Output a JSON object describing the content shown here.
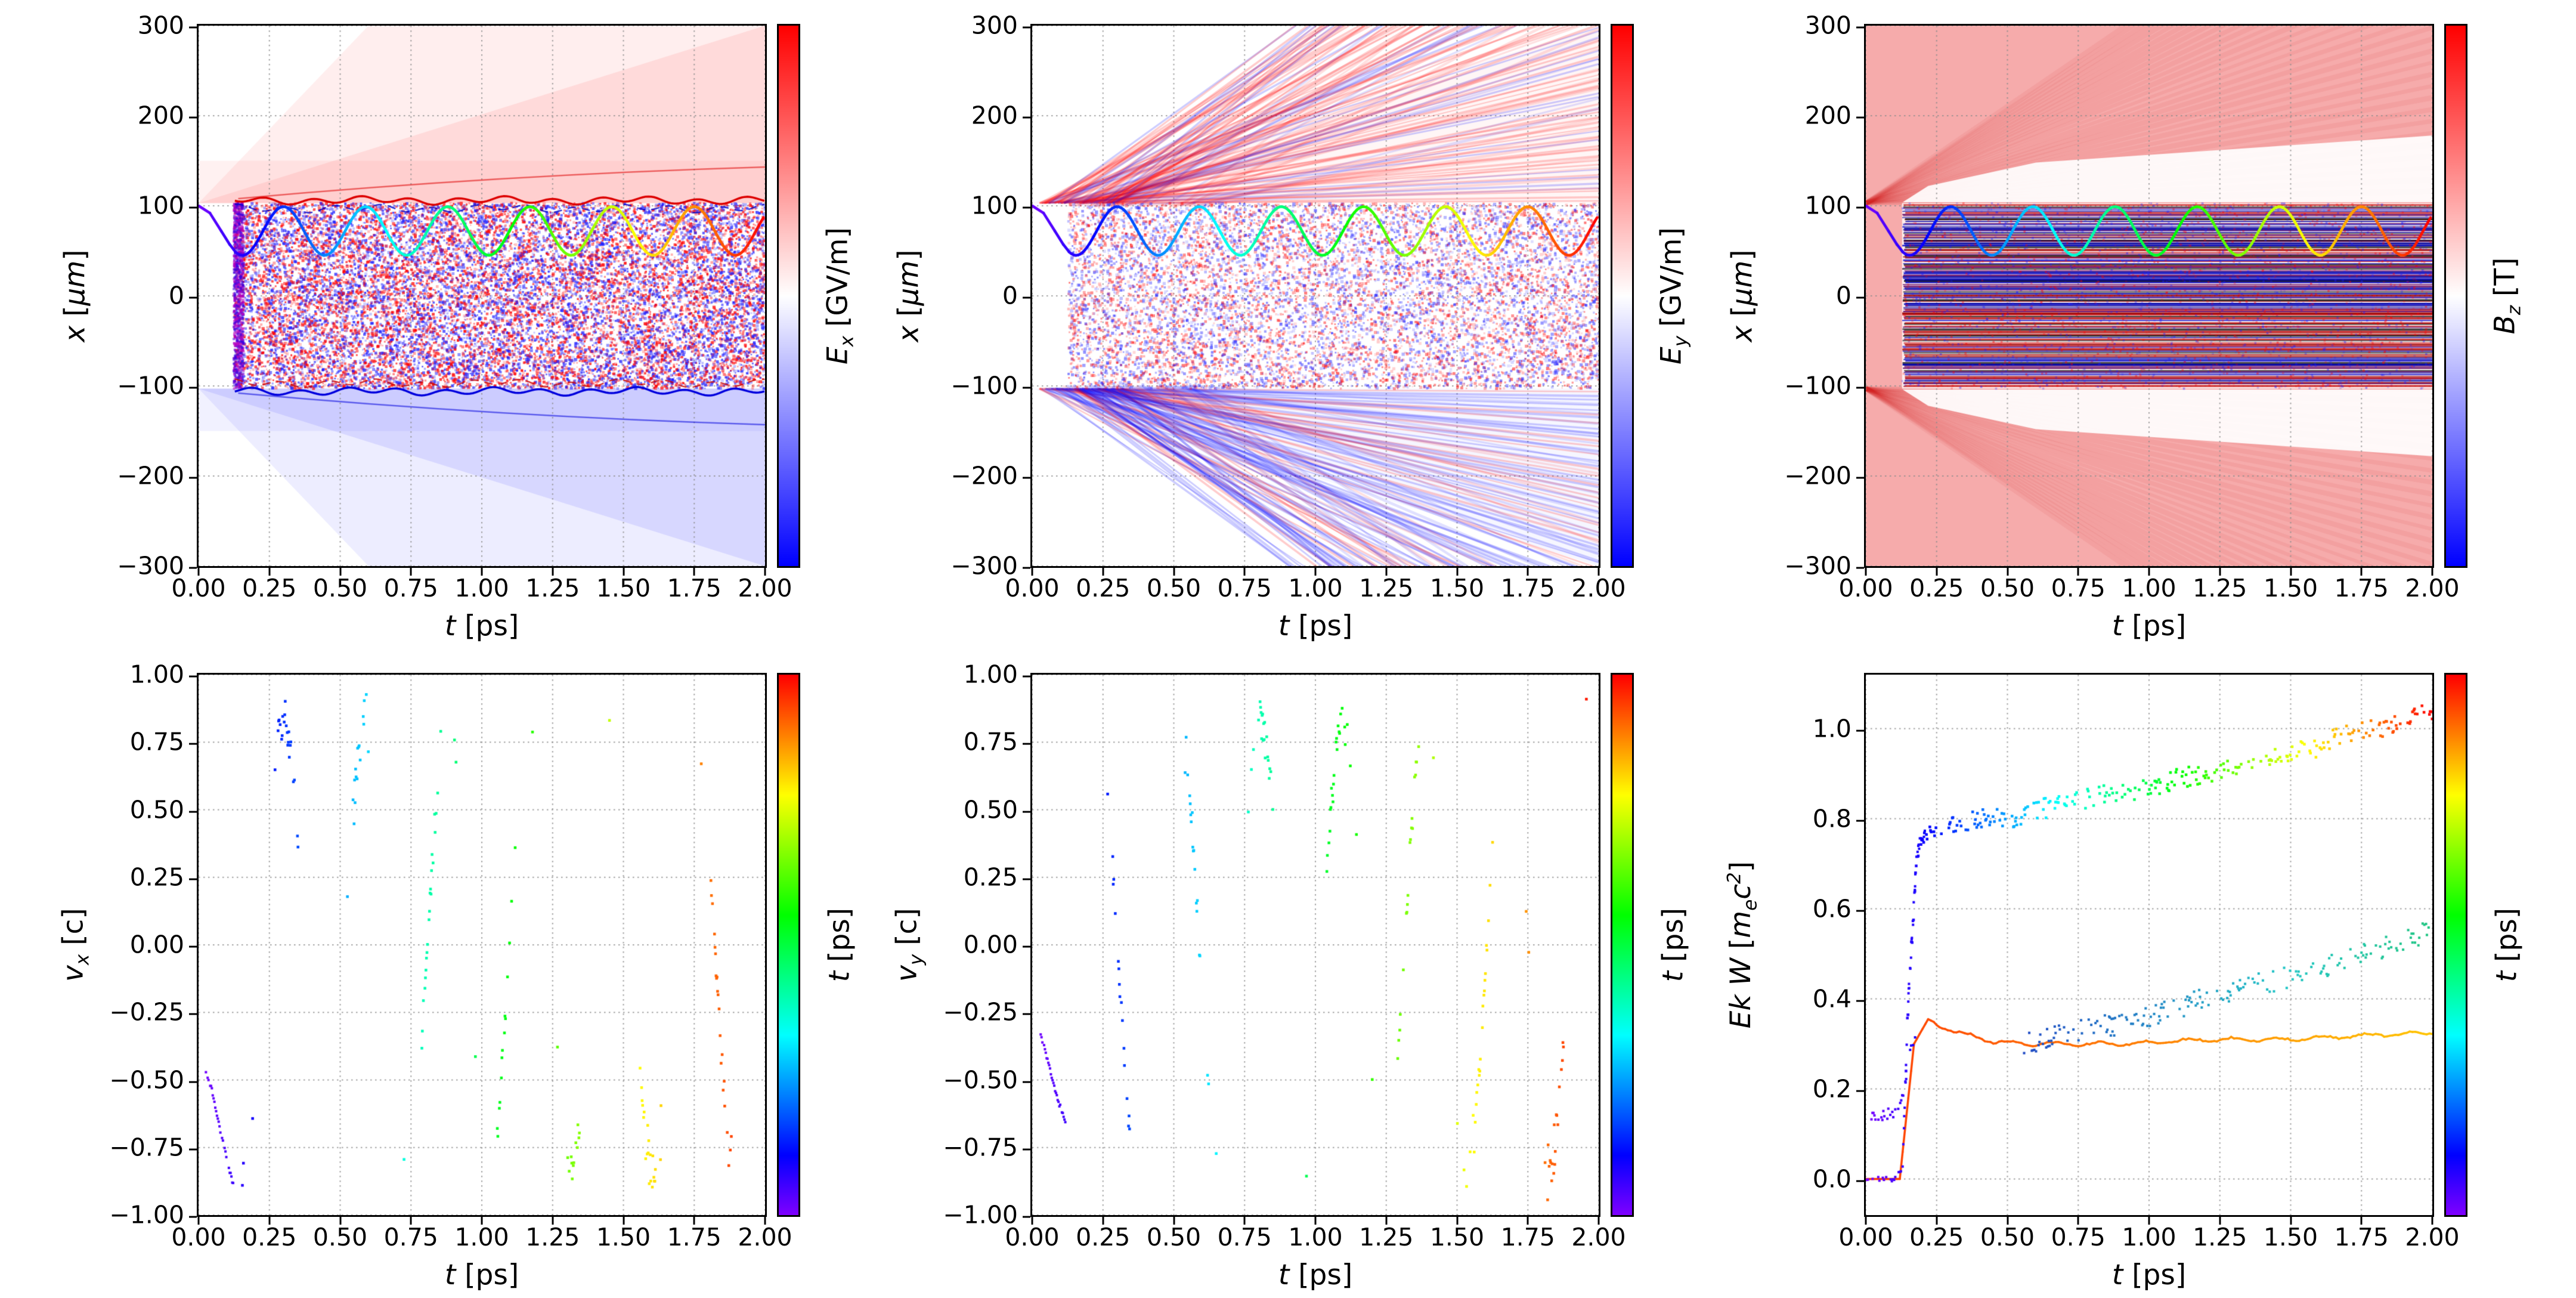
{
  "chart_data": {
    "figure_type": "matplotlib-2x3-grid",
    "colormaps": {
      "diverging_field": [
        "#0000ff",
        "#ffffff",
        "#ff0000"
      ],
      "time_rainbow": [
        "#8000ff",
        "#0040ff",
        "#00c0ff",
        "#00ff80",
        "#c8ff00",
        "#ff8000",
        "#ff0000"
      ]
    },
    "shared_x": {
      "label_segments": [
        {
          "i": "t"
        },
        {
          "t": "  [ps]"
        }
      ],
      "lim": [
        0,
        2
      ],
      "tick_values": [
        0,
        0.25,
        0.5,
        0.75,
        1.0,
        1.25,
        1.5,
        1.75,
        2.0
      ],
      "tick_labels": [
        "0.00",
        "0.25",
        "0.50",
        "0.75",
        "1.00",
        "1.25",
        "1.50",
        "1.75",
        "2.00"
      ]
    },
    "trajectory_overlay": {
      "description": "particle transverse position x(t) drawn over all three field maps, colored by t with rainbow colormap",
      "start_points": [
        [
          0,
          100
        ],
        [
          0.04,
          92
        ],
        [
          0.08,
          72
        ],
        [
          0.11,
          57
        ],
        [
          0.13,
          49
        ]
      ],
      "oscillation": {
        "mean_um": 72,
        "amplitude_um": 27,
        "period_ps": 0.29,
        "first_peak_ps": 0.3
      }
    },
    "panels": [
      {
        "id": "Ex",
        "type": "heatmap",
        "ylabel_segments": [
          {
            "i": "x"
          },
          {
            "t": "  ["
          },
          {
            "i": "μm"
          },
          {
            "t": "]"
          }
        ],
        "ylim": [
          -300,
          300
        ],
        "ytick_values": [
          300,
          200,
          100,
          0,
          -100,
          -200,
          -300
        ],
        "ytick_labels": [
          "300",
          "200",
          "100",
          "0",
          "−100",
          "−200",
          "−300"
        ],
        "colorbar_label_segments": [
          {
            "i": "E"
          },
          {
            "sub": "x"
          },
          {
            "t": "  [GV/m]"
          }
        ],
        "colorbar": {
          "type": "diverging"
        },
        "features": {
          "channel_x_um": [
            -103,
            103
          ],
          "channel_t_start_ps": 0.13,
          "inside": "dense red/blue laser-field speckle",
          "above": "diffuse positive (red) wedge spreading from x = 100 μm",
          "below": "diffuse negative (blue) wedge spreading from x = −100 μm",
          "edges": "sharp red line at x ≈ +105 μm, blue line at x ≈ −105 μm"
        }
      },
      {
        "id": "Ey",
        "type": "heatmap",
        "ylabel_segments": [
          {
            "i": "x"
          },
          {
            "t": "  ["
          },
          {
            "i": "μm"
          },
          {
            "t": "]"
          }
        ],
        "ylim": [
          -300,
          300
        ],
        "ytick_values": [
          300,
          200,
          100,
          0,
          -100,
          -200,
          -300
        ],
        "ytick_labels": [
          "300",
          "200",
          "100",
          "0",
          "−100",
          "−200",
          "−300"
        ],
        "colorbar_label_segments": [
          {
            "i": "E"
          },
          {
            "sub": "y"
          },
          {
            "t": "  [GV/m]"
          }
        ],
        "colorbar": {
          "type": "diverging"
        },
        "features": {
          "channel_x_um": [
            -103,
            103
          ],
          "channel_t_start_ps": 0.13,
          "inside": "light red/blue speckle",
          "outside": "fine alternating red/blue diagonal striations fanning outward from the channel edges, red-dominant above, blue-dominant below"
        }
      },
      {
        "id": "Bz",
        "type": "heatmap",
        "ylabel_segments": [
          {
            "i": "x"
          },
          {
            "t": "  ["
          },
          {
            "i": "μm"
          },
          {
            "t": "]"
          }
        ],
        "ylim": [
          -300,
          300
        ],
        "ytick_values": [
          300,
          200,
          100,
          0,
          -100,
          -200,
          -300
        ],
        "ytick_labels": [
          "300",
          "200",
          "100",
          "0",
          "−100",
          "−200",
          "−300"
        ],
        "colorbar_label_segments": [
          {
            "i": "B"
          },
          {
            "sub": "z"
          },
          {
            "t": "  [T]"
          }
        ],
        "colorbar": {
          "type": "diverging"
        },
        "features": {
          "background": "uniform light red (positive Bz) everywhere outside channel",
          "inside": "dense horizontal red/blue/black striations for |x| < 100 μm, t > 0.13 ps",
          "edges": "white gap between x ≈ 105 and ≈ 180 μm at both channel edges"
        }
      },
      {
        "id": "vx",
        "type": "scatter",
        "ylabel_segments": [
          {
            "i": "v"
          },
          {
            "sub": "x"
          },
          {
            "t": " [c]"
          }
        ],
        "ylim": [
          -1,
          1
        ],
        "ytick_values": [
          1,
          0.75,
          0.5,
          0.25,
          0,
          -0.25,
          -0.5,
          -0.75,
          -1
        ],
        "ytick_labels": [
          "1.00",
          "0.75",
          "0.50",
          "0.25",
          "0.00",
          "−0.25",
          "−0.50",
          "−0.75",
          "−1.00"
        ],
        "colorbar_label_segments": [
          {
            "i": "t"
          },
          {
            "t": "  [ps]"
          }
        ],
        "colorbar": {
          "type": "rainbow"
        },
        "series": {
          "model": "vx(t) ~ 0.85 sin(2pi (t-0.2275)/0.29), sparse dots clustered every ~0.255 ps, colored by t (rainbow)",
          "amplitude_c": 0.85,
          "period_ps": 0.29,
          "cluster_period_ps": 0.255,
          "first_cluster_ps": 0.31,
          "injection_arc": [
            [
              0.02,
              -0.45
            ],
            [
              0.05,
              -0.55
            ],
            [
              0.08,
              -0.7
            ],
            [
              0.11,
              -0.84
            ],
            [
              0.125,
              -0.9
            ]
          ]
        }
      },
      {
        "id": "vy",
        "type": "scatter",
        "ylabel_segments": [
          {
            "i": "v"
          },
          {
            "sub": "y"
          },
          {
            "t": " [c]"
          }
        ],
        "ylim": [
          -1,
          1
        ],
        "ytick_values": [
          1,
          0.75,
          0.5,
          0.25,
          0,
          -0.25,
          -0.5,
          -0.75,
          -1
        ],
        "ytick_labels": [
          "1.00",
          "0.75",
          "0.50",
          "0.25",
          "0.00",
          "−0.25",
          "−0.50",
          "−0.75",
          "−1.00"
        ],
        "colorbar_label_segments": [
          {
            "i": "t"
          },
          {
            "t": "  [ps]"
          }
        ],
        "colorbar": {
          "type": "rainbow"
        },
        "series": {
          "model": "vy(t) ~ 0.85 cos(2pi (t-0.2275)/0.29), sparse dots clustered every ~0.255 ps, colored by t (rainbow)",
          "amplitude_c": 0.85,
          "period_ps": 0.29,
          "cluster_period_ps": 0.255,
          "first_cluster_ps": 0.31,
          "injection_arc": [
            [
              0.03,
              -0.33
            ],
            [
              0.06,
              -0.45
            ],
            [
              0.09,
              -0.57
            ],
            [
              0.12,
              -0.67
            ]
          ]
        }
      },
      {
        "id": "Ek",
        "type": "scatter",
        "ylabel_segments": [
          {
            "i": "Ek W"
          },
          {
            "t": " ["
          },
          {
            "i": "m"
          },
          {
            "sub": "e"
          },
          {
            "i": "c"
          },
          {
            "sup": "2"
          },
          {
            "t": "]"
          }
        ],
        "ylim": [
          -0.08,
          1.12
        ],
        "ytick_values": [
          1.0,
          0.8,
          0.6,
          0.4,
          0.2,
          0.0
        ],
        "ytick_labels": [
          "1.0",
          "0.8",
          "0.6",
          "0.4",
          "0.2",
          "0.0"
        ],
        "colorbar_label_segments": [
          {
            "i": "t"
          },
          {
            "t": "  [ps]"
          }
        ],
        "colorbar": {
          "type": "rainbow"
        },
        "series": {
          "accelerated_scatter": {
            "color": "rainbow by t",
            "points": [
              [
                0.13,
                0.02
              ],
              [
                0.15,
                0.4
              ],
              [
                0.18,
                0.72
              ],
              [
                0.2,
                0.76
              ],
              [
                0.25,
                0.78
              ],
              [
                0.3,
                0.79
              ],
              [
                0.4,
                0.8
              ],
              [
                0.5,
                0.8
              ],
              [
                0.6,
                0.82
              ],
              [
                0.7,
                0.83
              ],
              [
                0.8,
                0.85
              ],
              [
                0.9,
                0.86
              ],
              [
                1.0,
                0.87
              ],
              [
                1.1,
                0.89
              ],
              [
                1.2,
                0.9
              ],
              [
                1.3,
                0.92
              ],
              [
                1.4,
                0.93
              ],
              [
                1.5,
                0.95
              ],
              [
                1.6,
                0.96
              ],
              [
                1.7,
                0.99
              ],
              [
                1.8,
                1.0
              ],
              [
                1.9,
                1.02
              ],
              [
                2.0,
                1.04
              ]
            ]
          },
          "secondary_scatter": {
            "color": "blue to teal",
            "points": [
              [
                0.55,
                0.3
              ],
              [
                0.7,
                0.32
              ],
              [
                0.85,
                0.34
              ],
              [
                1.0,
                0.36
              ],
              [
                1.15,
                0.39
              ],
              [
                1.3,
                0.42
              ],
              [
                1.45,
                0.44
              ],
              [
                1.6,
                0.47
              ],
              [
                1.75,
                0.5
              ],
              [
                1.9,
                0.53
              ],
              [
                2.0,
                0.55
              ]
            ]
          },
          "mean_line": {
            "color": "red-orange to yellow",
            "points": [
              [
                0,
                0
              ],
              [
                0.12,
                0
              ],
              [
                0.17,
                0.3
              ],
              [
                0.22,
                0.355
              ],
              [
                0.3,
                0.33
              ],
              [
                0.45,
                0.305
              ],
              [
                0.6,
                0.3
              ],
              [
                0.9,
                0.3
              ],
              [
                1.2,
                0.31
              ],
              [
                1.5,
                0.31
              ],
              [
                1.8,
                0.32
              ],
              [
                2.0,
                0.325
              ]
            ]
          },
          "pre_injection_scatter": {
            "color": "violet",
            "points": [
              [
                0.02,
                0.14
              ],
              [
                0.06,
                0.14
              ],
              [
                0.1,
                0.15
              ],
              [
                0.13,
                0.18
              ],
              [
                0.15,
                0.26
              ],
              [
                0.18,
                0.34
              ]
            ]
          },
          "zero_level_scatter": {
            "color": "violet",
            "points": [
              [
                0,
                0
              ],
              [
                0.05,
                0
              ],
              [
                0.1,
                0
              ],
              [
                0.13,
                0.02
              ]
            ]
          }
        }
      }
    ]
  }
}
